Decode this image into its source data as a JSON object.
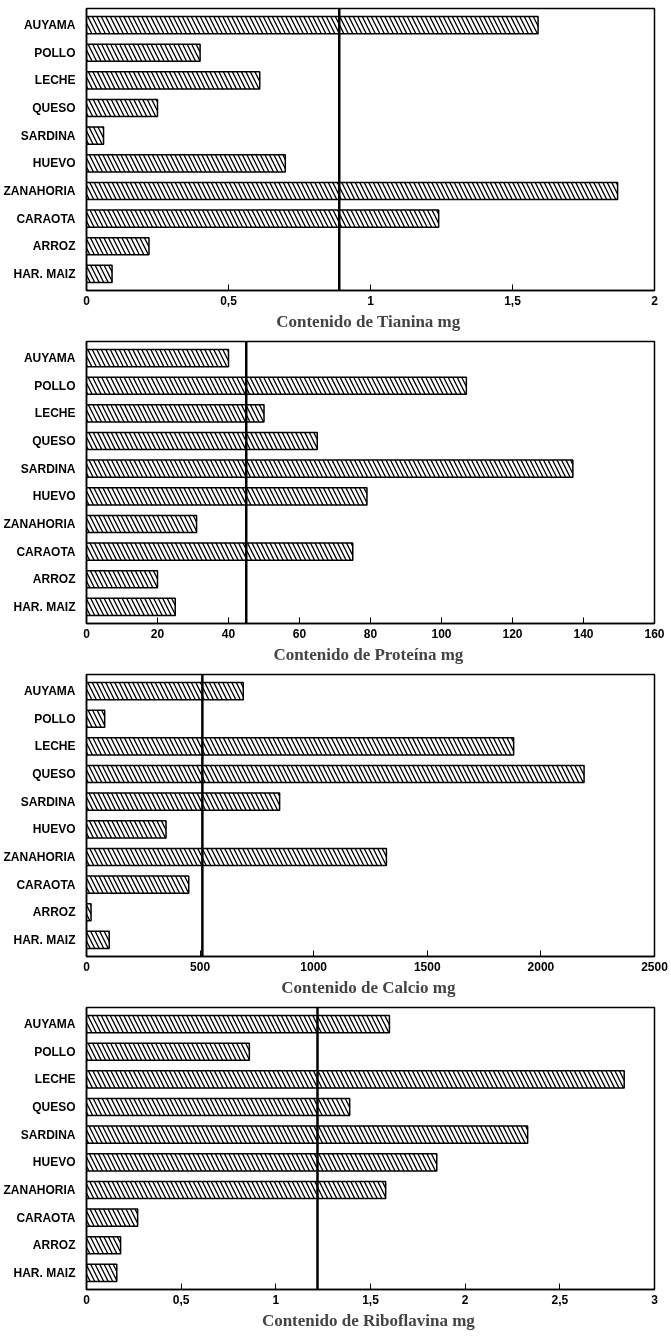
{
  "chart_data": [
    {
      "type": "bar",
      "orientation": "horizontal",
      "xlabel": "Contenido de Tianina  mg",
      "categories": [
        "AUYAMA",
        "POLLO",
        "LECHE",
        "QUESO",
        "SARDINA",
        "HUEVO",
        "ZANAHORIA",
        "CARAOTA",
        "ARROZ",
        "HAR. MAIZ"
      ],
      "values": [
        1.59,
        0.4,
        0.61,
        0.25,
        0.06,
        0.7,
        1.87,
        1.24,
        0.22,
        0.09
      ],
      "color": "#000000",
      "xlim": [
        0,
        2
      ],
      "xticks": [
        0,
        {
          "value": 0.5,
          "label": "0,5"
        },
        1,
        {
          "value": 1.5,
          "label": "1,5"
        },
        2
      ],
      "ref_lines": [
        {
          "axis": "x",
          "value": 0.89
        }
      ],
      "grid": false
    },
    {
      "type": "bar",
      "orientation": "horizontal",
      "xlabel": "Contenido de Proteína  mg",
      "categories": [
        "AUYAMA",
        "POLLO",
        "LECHE",
        "QUESO",
        "SARDINA",
        "HUEVO",
        "ZANAHORIA",
        "CARAOTA",
        "ARROZ",
        "HAR. MAIZ"
      ],
      "values": [
        40,
        107,
        50,
        65,
        137,
        79,
        31,
        75,
        20,
        25
      ],
      "color": "#000000",
      "xlim": [
        0,
        160
      ],
      "xticks": [
        0,
        20,
        40,
        60,
        80,
        100,
        120,
        140,
        160
      ],
      "ref_lines": [
        {
          "axis": "x",
          "value": 45
        }
      ],
      "grid": false
    },
    {
      "type": "bar",
      "orientation": "horizontal",
      "xlabel": "Contenido de Calcio  mg",
      "categories": [
        "AUYAMA",
        "POLLO",
        "LECHE",
        "QUESO",
        "SARDINA",
        "HUEVO",
        "ZANAHORIA",
        "CARAOTA",
        "ARROZ",
        "HAR. MAIZ"
      ],
      "values": [
        690,
        80,
        1880,
        2190,
        850,
        350,
        1320,
        450,
        20,
        100
      ],
      "color": "#000000",
      "xlim": [
        0,
        2500
      ],
      "xticks": [
        0,
        500,
        1000,
        1500,
        2000,
        2500
      ],
      "ref_lines": [
        {
          "axis": "x",
          "value": 510
        }
      ],
      "grid": false
    },
    {
      "type": "bar",
      "orientation": "horizontal",
      "xlabel": "Contenido de Riboflavina  mg",
      "categories": [
        "AUYAMA",
        "POLLO",
        "LECHE",
        "QUESO",
        "SARDINA",
        "HUEVO",
        "ZANAHORIA",
        "CARAOTA",
        "ARROZ",
        "HAR. MAIZ"
      ],
      "values": [
        1.6,
        0.86,
        2.84,
        1.39,
        2.33,
        1.85,
        1.58,
        0.27,
        0.18,
        0.16
      ],
      "color": "#000000",
      "xlim": [
        0,
        3
      ],
      "xticks": [
        0,
        {
          "value": 0.5,
          "label": "0,5"
        },
        1,
        {
          "value": 1.5,
          "label": "1,5"
        },
        2,
        {
          "value": 2.5,
          "label": "2,5"
        },
        3
      ],
      "ref_lines": [
        {
          "axis": "x",
          "value": 1.22
        }
      ],
      "grid": false
    }
  ]
}
